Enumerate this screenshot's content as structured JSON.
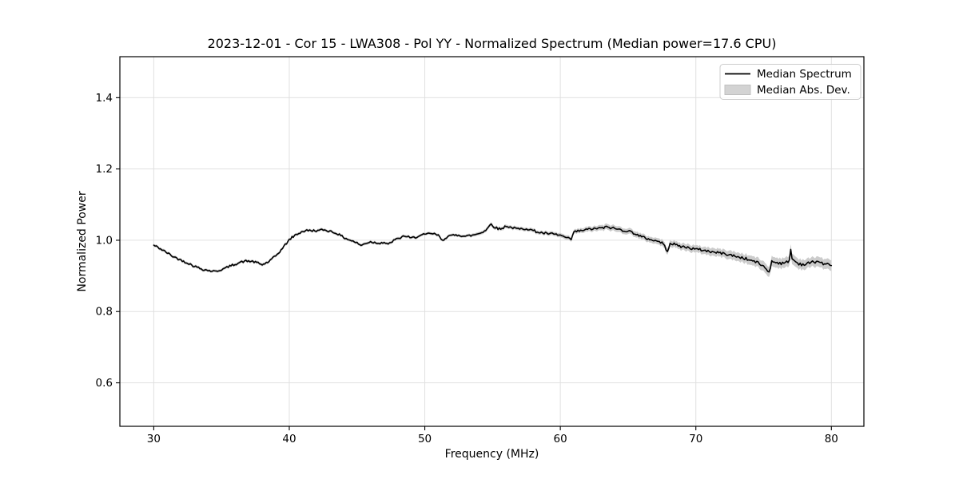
{
  "figure": {
    "background": "#ffffff"
  },
  "chart_data": {
    "type": "line",
    "title": "2023-12-01 - Cor 15 - LWA308 - Pol YY - Normalized Spectrum (Median power=17.6 CPU)",
    "xlabel": "Frequency (MHz)",
    "ylabel": "Normalized Power",
    "xlim": [
      27.5,
      82.4
    ],
    "ylim": [
      0.478,
      1.515
    ],
    "xticks": [
      30,
      40,
      50,
      60,
      70,
      80
    ],
    "yticks": [
      0.6,
      0.8,
      1.0,
      1.2,
      1.4
    ],
    "grid": true,
    "grid_color": "#e0e0e0",
    "frame_color": "#000000",
    "line_color": "#000000",
    "band_color": "#cccccc",
    "legend": {
      "position": "upper-right",
      "entries": [
        "Median Spectrum",
        "Median Abs. Dev."
      ],
      "patch_fill": "#d3d3d3",
      "patch_edge": "#c0c0c0",
      "frame_edge": "#cccccc"
    },
    "noise": {
      "base": 0.0028,
      "mad_factor": 0.12,
      "step_mhz": 0.1,
      "seed": 42
    },
    "x": [
      30,
      30.5,
      31,
      31.5,
      32,
      32.5,
      33,
      33.5,
      34,
      34.5,
      35,
      35.5,
      36,
      36.5,
      37,
      37.5,
      38,
      38.5,
      39,
      39.5,
      40,
      40.5,
      41,
      41.5,
      42,
      42.5,
      43,
      43.5,
      44,
      44.5,
      45,
      45.3,
      45.6,
      46,
      46.5,
      47,
      47.3,
      47.7,
      48,
      48.5,
      49,
      49.5,
      50,
      50.5,
      51,
      51.3,
      51.7,
      52,
      52.5,
      53,
      53.5,
      54,
      54.5,
      54.9,
      55.2,
      55.6,
      56,
      56.5,
      57,
      57.5,
      58,
      58.5,
      59,
      59.5,
      60,
      60.5,
      60.8,
      61,
      61.5,
      62,
      62.5,
      63,
      63.5,
      64,
      64.5,
      65,
      65.5,
      66,
      66.5,
      67,
      67.5,
      67.9,
      68.1,
      68.5,
      69,
      69.5,
      70,
      70.5,
      71,
      71.5,
      72,
      72.5,
      73,
      73.5,
      74,
      74.5,
      75,
      75.4,
      75.6,
      76,
      76.5,
      76.9,
      77,
      77.1,
      77.5,
      78,
      78.5,
      79,
      79.5,
      80
    ],
    "series": [
      {
        "name": "Median Spectrum",
        "values": [
          0.986,
          0.976,
          0.964,
          0.953,
          0.945,
          0.936,
          0.927,
          0.92,
          0.915,
          0.913,
          0.917,
          0.925,
          0.933,
          0.94,
          0.942,
          0.939,
          0.931,
          0.94,
          0.956,
          0.977,
          1.002,
          1.016,
          1.025,
          1.028,
          1.026,
          1.029,
          1.026,
          1.019,
          1.008,
          1.0,
          0.993,
          0.985,
          0.991,
          0.996,
          0.992,
          0.994,
          0.988,
          1.0,
          1.004,
          1.012,
          1.006,
          1.011,
          1.016,
          1.019,
          1.014,
          0.999,
          1.012,
          1.013,
          1.015,
          1.011,
          1.014,
          1.019,
          1.028,
          1.046,
          1.035,
          1.031,
          1.04,
          1.034,
          1.031,
          1.033,
          1.027,
          1.021,
          1.019,
          1.017,
          1.014,
          1.006,
          1.002,
          1.023,
          1.027,
          1.03,
          1.033,
          1.034,
          1.037,
          1.033,
          1.029,
          1.026,
          1.019,
          1.009,
          1.004,
          0.999,
          0.994,
          0.97,
          0.992,
          0.987,
          0.982,
          0.979,
          0.975,
          0.972,
          0.969,
          0.965,
          0.964,
          0.959,
          0.954,
          0.95,
          0.944,
          0.939,
          0.927,
          0.911,
          0.941,
          0.938,
          0.934,
          0.944,
          0.974,
          0.948,
          0.936,
          0.931,
          0.938,
          0.941,
          0.933,
          0.929
        ]
      },
      {
        "name": "Median Abs. Dev. (half-width)",
        "values": [
          0.004,
          0.004,
          0.004,
          0.004,
          0.004,
          0.004,
          0.004,
          0.004,
          0.004,
          0.004,
          0.004,
          0.004,
          0.004,
          0.004,
          0.004,
          0.004,
          0.004,
          0.004,
          0.004,
          0.004,
          0.004,
          0.004,
          0.004,
          0.004,
          0.004,
          0.004,
          0.004,
          0.004,
          0.004,
          0.004,
          0.004,
          0.004,
          0.004,
          0.004,
          0.004,
          0.004,
          0.004,
          0.004,
          0.004,
          0.004,
          0.004,
          0.004,
          0.004,
          0.004,
          0.004,
          0.004,
          0.004,
          0.004,
          0.004,
          0.004,
          0.0045,
          0.0045,
          0.005,
          0.005,
          0.005,
          0.005,
          0.005,
          0.005,
          0.005,
          0.005,
          0.005,
          0.005,
          0.0055,
          0.0055,
          0.006,
          0.006,
          0.006,
          0.006,
          0.0065,
          0.007,
          0.007,
          0.0075,
          0.008,
          0.008,
          0.008,
          0.008,
          0.008,
          0.008,
          0.008,
          0.0085,
          0.009,
          0.009,
          0.009,
          0.009,
          0.0095,
          0.01,
          0.01,
          0.01,
          0.011,
          0.011,
          0.011,
          0.012,
          0.012,
          0.012,
          0.013,
          0.013,
          0.014,
          0.014,
          0.014,
          0.014,
          0.014,
          0.014,
          0.015,
          0.015,
          0.014,
          0.014,
          0.013,
          0.014,
          0.014,
          0.015
        ]
      }
    ]
  }
}
